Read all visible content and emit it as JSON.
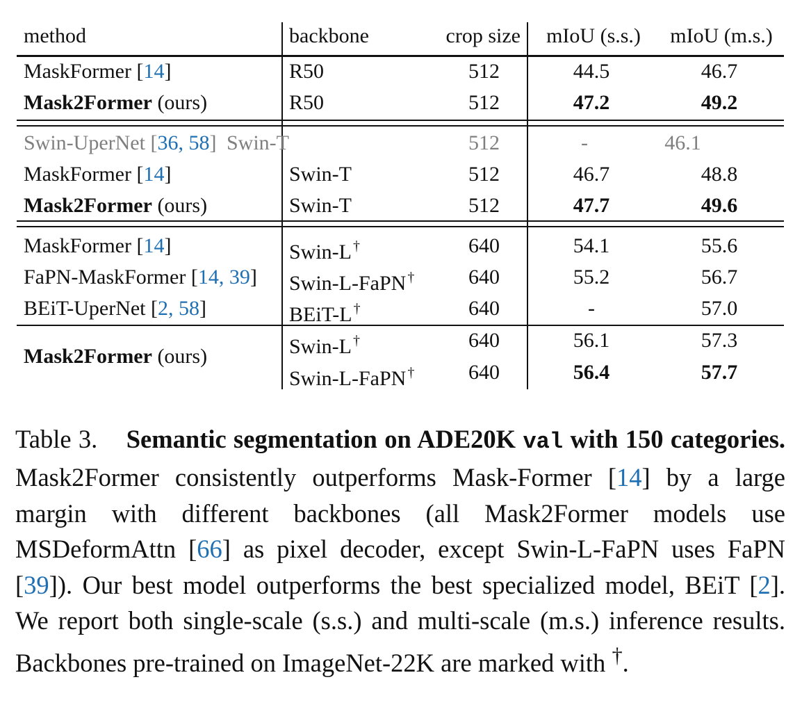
{
  "table": {
    "headers": [
      "method",
      "backbone",
      "crop size",
      "mIoU (s.s.)",
      "mIoU (m.s.)"
    ],
    "groups": [
      {
        "rows": [
          {
            "method": "MaskFormer",
            "cite": "14",
            "suffix": "",
            "backbone": "R50",
            "dagger": false,
            "crop": "512",
            "ss": "44.5",
            "ms": "46.7",
            "bold_method": false,
            "bold_ss": false,
            "bold_ms": false,
            "gray": false
          },
          {
            "method": "Mask2Former",
            "cite": "",
            "suffix": "(ours)",
            "backbone": "R50",
            "dagger": false,
            "crop": "512",
            "ss": "47.2",
            "ms": "49.2",
            "bold_method": true,
            "bold_ss": true,
            "bold_ms": true,
            "gray": false
          }
        ]
      },
      {
        "rows": [
          {
            "method": "Swin-UperNet",
            "cite": "36, 58",
            "suffix": "",
            "backbone": "Swin-T",
            "dagger": false,
            "crop": "512",
            "ss": "-",
            "ms": "46.1",
            "bold_method": false,
            "bold_ss": false,
            "bold_ms": false,
            "gray": true
          },
          {
            "method": "MaskFormer",
            "cite": "14",
            "suffix": "",
            "backbone": "Swin-T",
            "dagger": false,
            "crop": "512",
            "ss": "46.7",
            "ms": "48.8",
            "bold_method": false,
            "bold_ss": false,
            "bold_ms": false,
            "gray": false
          },
          {
            "method": "Mask2Former",
            "cite": "",
            "suffix": "(ours)",
            "backbone": "Swin-T",
            "dagger": false,
            "crop": "512",
            "ss": "47.7",
            "ms": "49.6",
            "bold_method": true,
            "bold_ss": true,
            "bold_ms": true,
            "gray": false
          }
        ]
      },
      {
        "rows": [
          {
            "method": "MaskFormer",
            "cite": "14",
            "suffix": "",
            "backbone": "Swin-L",
            "dagger": true,
            "crop": "640",
            "ss": "54.1",
            "ms": "55.6",
            "bold_method": false,
            "bold_ss": false,
            "bold_ms": false,
            "gray": false
          },
          {
            "method": "FaPN-MaskFormer",
            "cite": "14, 39",
            "suffix": "",
            "backbone": "Swin-L-FaPN",
            "dagger": true,
            "crop": "640",
            "ss": "55.2",
            "ms": "56.7",
            "bold_method": false,
            "bold_ss": false,
            "bold_ms": false,
            "gray": false
          },
          {
            "method": "BEiT-UperNet",
            "cite": "2, 58",
            "suffix": "",
            "backbone": "BEiT-L",
            "dagger": true,
            "crop": "640",
            "ss": "-",
            "ms": "57.0",
            "bold_method": false,
            "bold_ss": false,
            "bold_ms": false,
            "gray": false
          }
        ]
      },
      {
        "method": "Mask2Former",
        "suffix": "(ours)",
        "rows": [
          {
            "backbone": "Swin-L",
            "dagger": true,
            "crop": "640",
            "ss": "56.1",
            "ms": "57.3",
            "bold_ss": false,
            "bold_ms": false
          },
          {
            "backbone": "Swin-L-FaPN",
            "dagger": true,
            "crop": "640",
            "ss": "56.4",
            "ms": "57.7",
            "bold_ss": true,
            "bold_ms": true
          }
        ]
      }
    ],
    "dagger_symbol": "†"
  },
  "caption": {
    "label": "Table 3.",
    "title_a": "Semantic segmentation on ADE20K",
    "title_mono": "val",
    "title_b": "with 150 categories.",
    "t1": "Mask2Former consistently outperforms Mask-Former",
    "c1": "14",
    "t2": "by a large margin with different backbones (all Mask2Former models use MSDeformAttn",
    "c2": "66",
    "t3": "as pixel decoder, except Swin-L-FaPN uses FaPN",
    "c3": "39",
    "t4": "). Our best model outperforms the best specialized model, BEiT",
    "c4": "2",
    "t5": ". We report both single-scale (s.s.) and multi-scale (m.s.) inference results. Backbones pre-trained on ImageNet-22K are marked with",
    "t6": "."
  }
}
